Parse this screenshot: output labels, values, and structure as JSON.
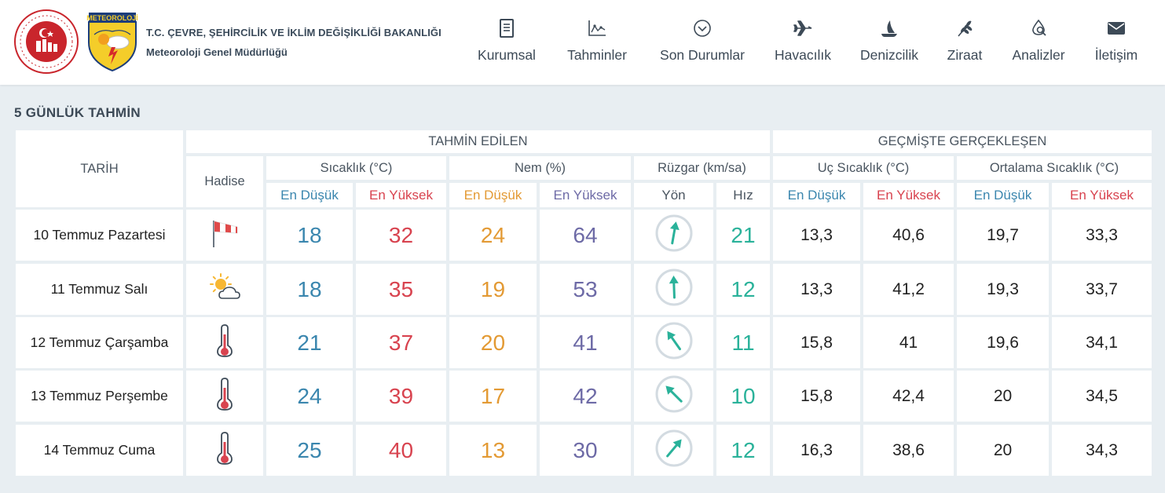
{
  "header": {
    "org_name": "T.C. ÇEVRE, ŞEHİRCİLİK VE İKLİM DEĞİŞİKLİĞİ BAKANLIĞI",
    "org_sub": "Meteoroloji Genel Müdürlüğü",
    "logo2_text": "METEOROLOJİ",
    "nav": [
      {
        "label": "Kurumsal",
        "icon": "document-icon"
      },
      {
        "label": "Tahminler",
        "icon": "chart-icon"
      },
      {
        "label": "Son Durumlar",
        "icon": "chevron-circle-icon"
      },
      {
        "label": "Havacılık",
        "icon": "airplane-icon"
      },
      {
        "label": "Denizcilik",
        "icon": "sailboat-icon"
      },
      {
        "label": "Ziraat",
        "icon": "wheat-icon"
      },
      {
        "label": "Analizler",
        "icon": "analysis-icon"
      },
      {
        "label": "İletişim",
        "icon": "envelope-icon"
      }
    ]
  },
  "section_title": "5 GÜNLÜK TAHMİN",
  "table": {
    "h_tarih": "TARİH",
    "h_tahmin": "TAHMİN EDİLEN",
    "h_gecmis": "GEÇMİŞTE GERÇEKLEŞEN",
    "h_hadise": "Hadise",
    "h_sicaklik": "Sıcaklık (°C)",
    "h_nem": "Nem (%)",
    "h_ruzgar": "Rüzgar (km/sa)",
    "h_uc": "Uç Sıcaklık (°C)",
    "h_ortalama": "Ortalama Sıcaklık (°C)",
    "sub_low": "En Düşük",
    "sub_high": "En Yüksek",
    "sub_yon": "Yön",
    "sub_hiz": "Hız",
    "colors": {
      "low": "#3a86ae",
      "high": "#d8434f",
      "hum_low": "#e39a34",
      "hum_high": "#6d6aa6",
      "wind": "#2ab29a"
    },
    "rows": [
      {
        "date": "10 Temmuz Pazartesi",
        "icon": "windsock-icon",
        "t_low": "18",
        "t_high": "32",
        "h_low": "24",
        "h_high": "64",
        "wind_dir_deg": 190,
        "wind_speed": "21",
        "uc_low": "13,3",
        "uc_high": "40,6",
        "ort_low": "19,7",
        "ort_high": "33,3"
      },
      {
        "date": "11 Temmuz Salı",
        "icon": "partly-cloudy-icon",
        "t_low": "18",
        "t_high": "35",
        "h_low": "19",
        "h_high": "53",
        "wind_dir_deg": 178,
        "wind_speed": "12",
        "uc_low": "13,3",
        "uc_high": "41,2",
        "ort_low": "19,3",
        "ort_high": "33,7"
      },
      {
        "date": "12 Temmuz Çarşamba",
        "icon": "thermometer-icon",
        "t_low": "21",
        "t_high": "37",
        "h_low": "20",
        "h_high": "41",
        "wind_dir_deg": 145,
        "wind_speed": "11",
        "uc_low": "15,8",
        "uc_high": "41",
        "ort_low": "19,6",
        "ort_high": "34,1"
      },
      {
        "date": "13 Temmuz Perşembe",
        "icon": "thermometer-icon",
        "t_low": "24",
        "t_high": "39",
        "h_low": "17",
        "h_high": "42",
        "wind_dir_deg": 135,
        "wind_speed": "10",
        "uc_low": "15,8",
        "uc_high": "42,4",
        "ort_low": "20",
        "ort_high": "34,5"
      },
      {
        "date": "14 Temmuz Cuma",
        "icon": "thermometer-icon",
        "t_low": "25",
        "t_high": "40",
        "h_low": "13",
        "h_high": "30",
        "wind_dir_deg": 220,
        "wind_speed": "12",
        "uc_low": "16,3",
        "uc_high": "38,6",
        "ort_low": "20",
        "ort_high": "34,3"
      }
    ]
  }
}
